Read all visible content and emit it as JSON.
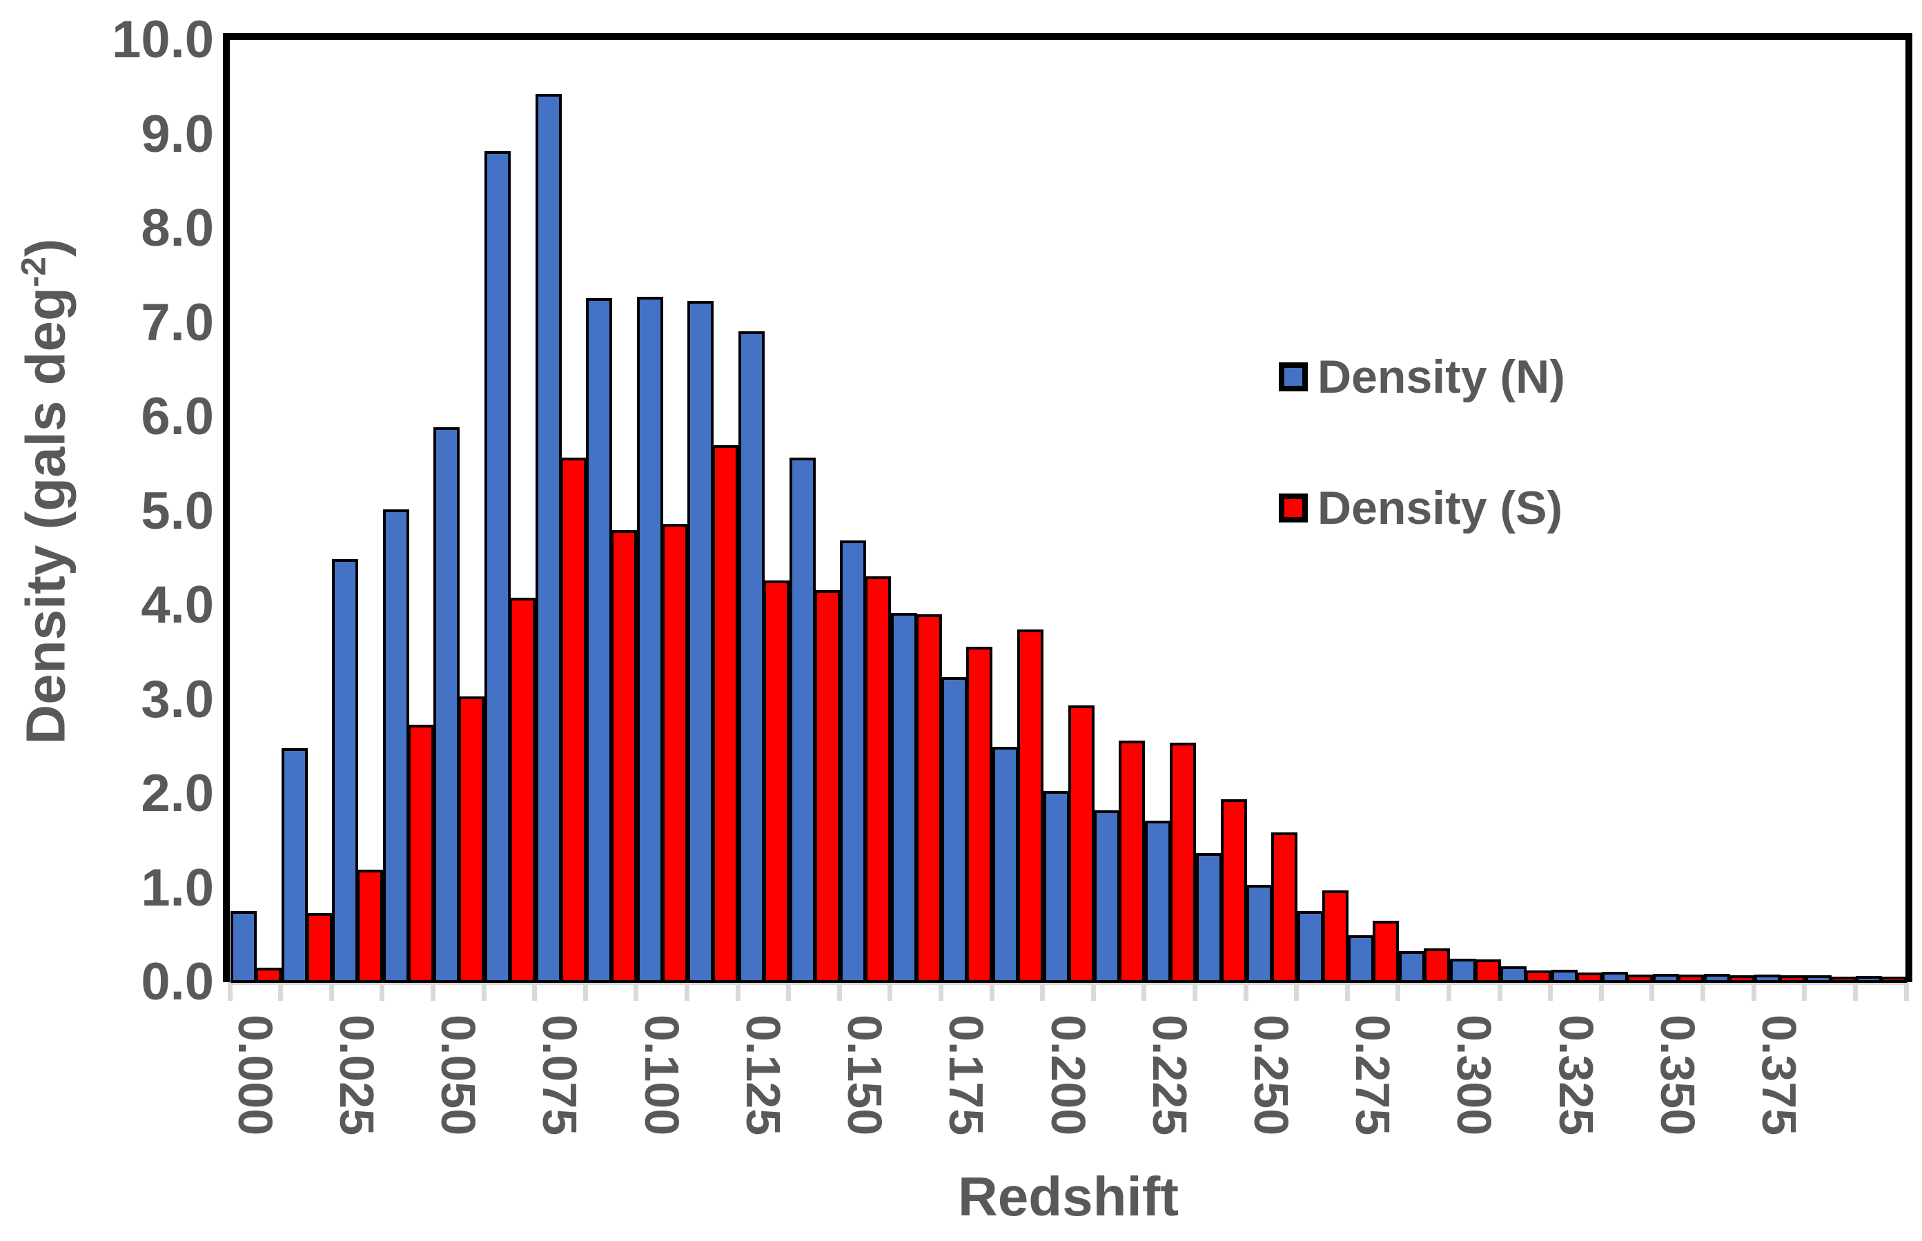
{
  "chart_data": {
    "type": "bar",
    "title": "",
    "xlabel": "Redshift",
    "ylabel": "Density (gals deg-2)",
    "ylabel_parts": {
      "main": "Density (gals deg",
      "sup": "-2",
      "end": ")"
    },
    "ylim": [
      0,
      10
    ],
    "grid": false,
    "legend_position": "inside-right",
    "text_color": "#595959",
    "axis_line_color": "#D9D9D9",
    "bar_outline_color": "#000000",
    "ytick_labels": [
      "0.0",
      "1.0",
      "2.0",
      "3.0",
      "4.0",
      "5.0",
      "6.0",
      "7.0",
      "8.0",
      "9.0",
      "10.0"
    ],
    "categories": [
      0.0,
      0.0125,
      0.025,
      0.0375,
      0.05,
      0.0625,
      0.075,
      0.0875,
      0.1,
      0.1125,
      0.125,
      0.1375,
      0.15,
      0.1625,
      0.175,
      0.1875,
      0.2,
      0.2125,
      0.225,
      0.2375,
      0.25,
      0.2625,
      0.275,
      0.2875,
      0.3,
      0.3125,
      0.325,
      0.3375,
      0.35,
      0.3625,
      0.375,
      0.3875,
      0.4
    ],
    "xtick_labels": [
      "0.000",
      "0.025",
      "0.050",
      "0.075",
      "0.100",
      "0.125",
      "0.150",
      "0.175",
      "0.200",
      "0.225",
      "0.250",
      "0.275",
      "0.300",
      "0.325",
      "0.350",
      "0.375"
    ],
    "xtick_label_every": 2,
    "series": [
      {
        "name": "Density (N)",
        "color": "#4472C4",
        "values": [
          0.7,
          2.43,
          4.44,
          4.97,
          5.84,
          8.77,
          9.38,
          7.21,
          7.22,
          7.18,
          6.86,
          5.52,
          4.64,
          3.87,
          3.19,
          2.45,
          1.98,
          1.77,
          1.66,
          1.32,
          0.98,
          0.7,
          0.45,
          0.28,
          0.2,
          0.12,
          0.08,
          0.055,
          0.04,
          0.035,
          0.03,
          0.02,
          0.015
        ]
      },
      {
        "name": "Density (S)",
        "color": "#FF0000",
        "values": [
          0.1,
          0.68,
          1.14,
          2.68,
          2.98,
          4.03,
          5.52,
          4.75,
          4.81,
          5.65,
          4.21,
          4.11,
          4.26,
          3.85,
          3.51,
          3.69,
          2.89,
          2.51,
          2.49,
          1.89,
          1.54,
          0.92,
          0.6,
          0.31,
          0.19,
          0.07,
          0.05,
          0.03,
          0.03,
          0.02,
          0.02,
          0.01,
          0.01
        ]
      }
    ]
  }
}
